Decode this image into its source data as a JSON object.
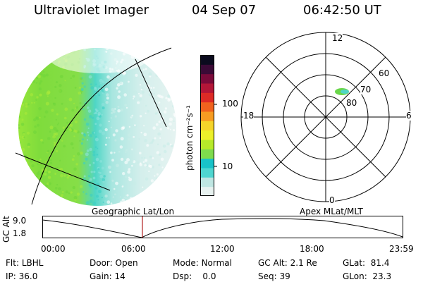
{
  "header": {
    "title": "Ultraviolet Imager",
    "date": "04 Sep 07",
    "time": "06:42:50 UT"
  },
  "colorbar": {
    "label": "photon cm⁻²s⁻¹",
    "ticks": [
      "100",
      "10"
    ],
    "colors": [
      "#e8f2f0",
      "#bfe6e2",
      "#4fd6d0",
      "#19c2c8",
      "#7edb4d",
      "#b7ea2a",
      "#ecf02a",
      "#f5d42a",
      "#f79c22",
      "#f0621e",
      "#dd2a26",
      "#b31638",
      "#7a0a3a",
      "#3b0a36",
      "#0b0b1e"
    ]
  },
  "polar": {
    "mlt_labels": [
      "12",
      "18",
      "6",
      "0"
    ],
    "lat_labels": [
      "60",
      "70",
      "80"
    ]
  },
  "timeline": {
    "left_title": "Geographic Lat/Lon",
    "right_title": "Apex MLat/MLT",
    "ylabel": "GC Alt",
    "y_max": "9.0",
    "y_min": "1.8",
    "x_ticks": [
      "00:00",
      "06:00",
      "12:00",
      "18:00",
      "23:59"
    ],
    "marker_color": "#b02020"
  },
  "info": {
    "flt_label": "Flt:",
    "flt_value": "LBHL",
    "ip_label": "IP:",
    "ip_value": "36.0",
    "door_label": "Door:",
    "door_value": "Open",
    "gain_label": "Gain:",
    "gain_value": "14",
    "mode_label": "Mode:",
    "mode_value": "Normal",
    "dsp_label": "Dsp:",
    "dsp_value": "0.0",
    "gcalt_label": "GC Alt:",
    "gcalt_value": "2.1 Re",
    "seq_label": "Seq:",
    "seq_value": "39",
    "glat_label": "GLat:",
    "glat_value": "81.4",
    "glon_label": "GLon:",
    "glon_value": "23.3"
  }
}
